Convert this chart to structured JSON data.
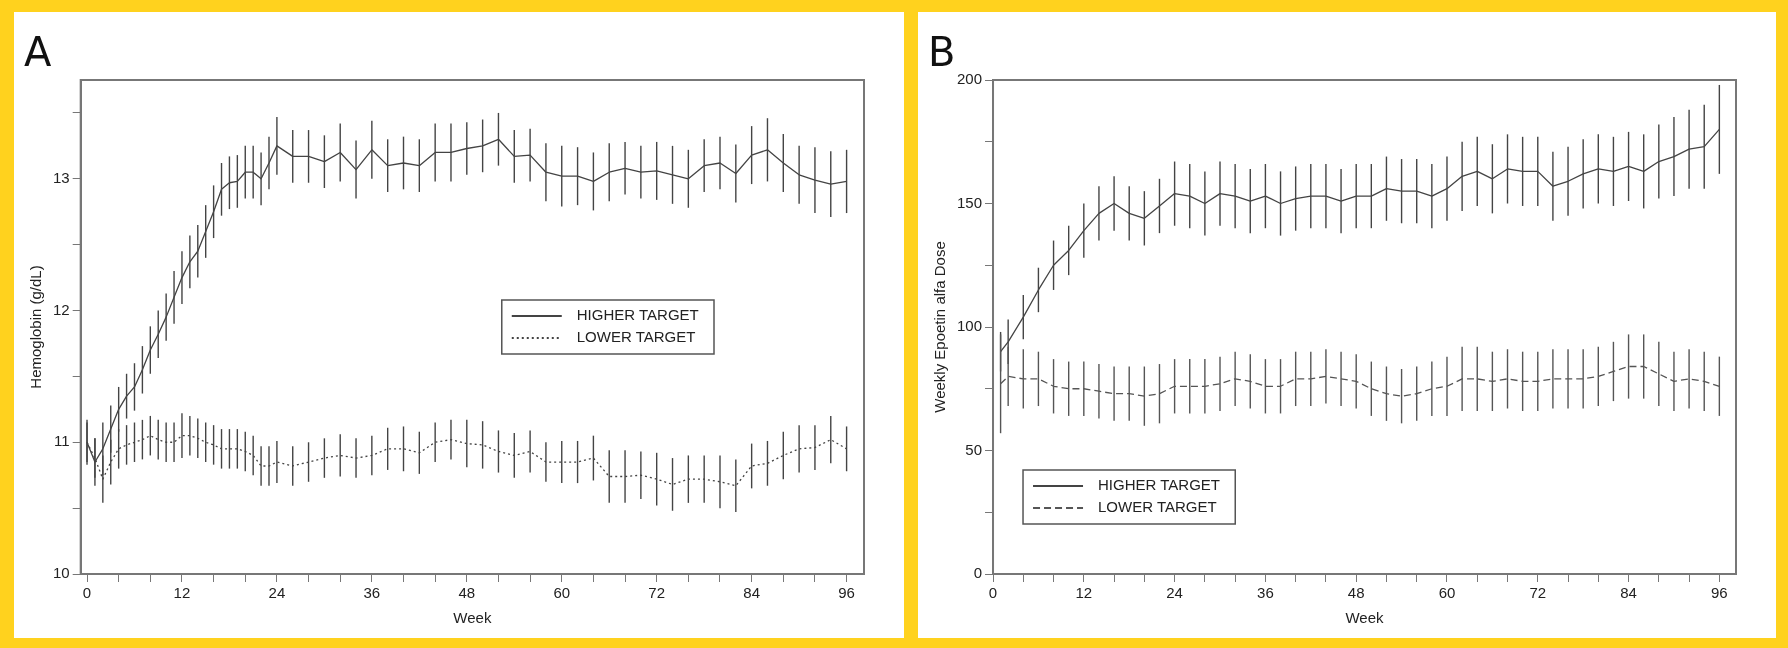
{
  "chart_data": [
    {
      "type": "line",
      "title": "A",
      "xlabel": "Week",
      "ylabel": "Hemoglobin (g/dL)",
      "xlim": [
        -0.8,
        98.2
      ],
      "ylim": [
        10,
        13.75
      ],
      "xticks": [
        0,
        {
          "value": 4,
          "label": null
        },
        {
          "value": 8,
          "label": null
        },
        12,
        {
          "value": 16,
          "label": null
        },
        {
          "value": 20,
          "label": null
        },
        24,
        {
          "value": 28,
          "label": null
        },
        {
          "value": 32,
          "label": null
        },
        36,
        {
          "value": 40,
          "label": null
        },
        {
          "value": 44,
          "label": null
        },
        48,
        {
          "value": 52,
          "label": null
        },
        {
          "value": 56,
          "label": null
        },
        60,
        {
          "value": 64,
          "label": null
        },
        {
          "value": 68,
          "label": null
        },
        72,
        {
          "value": 76,
          "label": null
        },
        {
          "value": 80,
          "label": null
        },
        84,
        {
          "value": 88,
          "label": null
        },
        {
          "value": 92,
          "label": null
        },
        96
      ],
      "yticks": [
        10,
        {
          "value": 10.5,
          "label": null
        },
        11,
        {
          "value": 11.5,
          "label": null
        },
        12,
        {
          "value": 12.5,
          "label": null
        },
        13,
        {
          "value": 13.5,
          "label": null
        }
      ],
      "grid": false,
      "legend": "right",
      "marker": "none",
      "x": [
        0,
        1,
        2,
        3,
        4,
        5,
        6,
        7,
        8,
        9,
        10,
        11,
        12,
        13,
        14,
        15,
        16,
        17,
        18,
        19,
        20,
        21,
        22,
        23,
        24,
        26,
        28,
        30,
        32,
        34,
        36,
        38,
        40,
        42,
        44,
        46,
        48,
        50,
        52,
        54,
        56,
        58,
        60,
        62,
        64,
        66,
        68,
        70,
        72,
        74,
        76,
        78,
        80,
        82,
        84,
        86,
        88,
        90,
        92,
        94,
        96
      ],
      "series": [
        {
          "name": "HIGHER TARGET",
          "color": "#444444",
          "line_style": "solid",
          "values": [
            11.0,
            10.85,
            10.95,
            11.1,
            11.25,
            11.35,
            11.42,
            11.55,
            11.7,
            11.82,
            11.95,
            12.1,
            12.25,
            12.37,
            12.45,
            12.6,
            12.75,
            12.92,
            12.97,
            12.98,
            13.05,
            13.05,
            13.0,
            13.12,
            13.25,
            13.17,
            13.17,
            13.13,
            13.2,
            13.07,
            13.22,
            13.1,
            13.12,
            13.1,
            13.2,
            13.2,
            13.23,
            13.25,
            13.3,
            13.17,
            13.18,
            13.05,
            13.02,
            13.02,
            12.98,
            13.05,
            13.08,
            13.05,
            13.06,
            13.03,
            13.0,
            13.1,
            13.12,
            13.04,
            13.18,
            13.22,
            13.12,
            13.03,
            12.99,
            12.96,
            12.98
          ],
          "errors": [
            0.17,
            0.18,
            0.2,
            0.18,
            0.17,
            0.17,
            0.18,
            0.18,
            0.18,
            0.18,
            0.18,
            0.2,
            0.2,
            0.2,
            0.2,
            0.2,
            0.2,
            0.2,
            0.2,
            0.2,
            0.2,
            0.2,
            0.2,
            0.2,
            0.22,
            0.2,
            0.2,
            0.2,
            0.22,
            0.22,
            0.22,
            0.2,
            0.2,
            0.2,
            0.22,
            0.22,
            0.2,
            0.2,
            0.2,
            0.2,
            0.2,
            0.22,
            0.23,
            0.22,
            0.22,
            0.22,
            0.2,
            0.2,
            0.22,
            0.22,
            0.22,
            0.2,
            0.2,
            0.22,
            0.22,
            0.24,
            0.22,
            0.22,
            0.25,
            0.25,
            0.24
          ]
        },
        {
          "name": "LOWER TARGET",
          "color": "#444444",
          "line_style": "dotted",
          "values": [
            11.0,
            10.88,
            10.72,
            10.85,
            10.95,
            10.98,
            11.0,
            11.02,
            11.05,
            11.02,
            11.0,
            11.0,
            11.05,
            11.05,
            11.03,
            11.0,
            10.98,
            10.95,
            10.95,
            10.95,
            10.93,
            10.9,
            10.82,
            10.82,
            10.85,
            10.82,
            10.85,
            10.88,
            10.9,
            10.88,
            10.9,
            10.95,
            10.95,
            10.92,
            11.0,
            11.02,
            10.99,
            10.98,
            10.93,
            10.9,
            10.93,
            10.85,
            10.85,
            10.85,
            10.88,
            10.74,
            10.74,
            10.75,
            10.72,
            10.68,
            10.72,
            10.72,
            10.7,
            10.67,
            10.82,
            10.84,
            10.9,
            10.95,
            10.96,
            11.02,
            10.95
          ],
          "errors": [
            0.15,
            0.15,
            0.18,
            0.17,
            0.15,
            0.15,
            0.15,
            0.15,
            0.15,
            0.15,
            0.15,
            0.15,
            0.17,
            0.15,
            0.15,
            0.15,
            0.15,
            0.15,
            0.15,
            0.15,
            0.15,
            0.15,
            0.15,
            0.15,
            0.16,
            0.15,
            0.15,
            0.15,
            0.16,
            0.15,
            0.15,
            0.16,
            0.17,
            0.16,
            0.15,
            0.15,
            0.18,
            0.18,
            0.16,
            0.17,
            0.16,
            0.15,
            0.16,
            0.16,
            0.17,
            0.2,
            0.2,
            0.18,
            0.2,
            0.2,
            0.18,
            0.18,
            0.2,
            0.2,
            0.17,
            0.17,
            0.18,
            0.18,
            0.17,
            0.18,
            0.17
          ]
        }
      ]
    },
    {
      "type": "line",
      "title": "B",
      "xlabel": "Week",
      "ylabel": "Weekly Epoetin alfa Dose",
      "xlim": [
        0,
        98.2
      ],
      "ylim": [
        0,
        200
      ],
      "xticks": [
        0,
        {
          "value": 4,
          "label": null
        },
        {
          "value": 8,
          "label": null
        },
        12,
        {
          "value": 16,
          "label": null
        },
        {
          "value": 20,
          "label": null
        },
        24,
        {
          "value": 28,
          "label": null
        },
        {
          "value": 32,
          "label": null
        },
        36,
        {
          "value": 40,
          "label": null
        },
        {
          "value": 44,
          "label": null
        },
        48,
        {
          "value": 52,
          "label": null
        },
        {
          "value": 56,
          "label": null
        },
        60,
        {
          "value": 64,
          "label": null
        },
        {
          "value": 68,
          "label": null
        },
        72,
        {
          "value": 76,
          "label": null
        },
        {
          "value": 80,
          "label": null
        },
        84,
        {
          "value": 88,
          "label": null
        },
        {
          "value": 92,
          "label": null
        },
        96
      ],
      "yticks": [
        0,
        {
          "value": 25,
          "label": null
        },
        50,
        {
          "value": 75,
          "label": null
        },
        100,
        {
          "value": 125,
          "label": null
        },
        150,
        {
          "value": 175,
          "label": null
        },
        200
      ],
      "grid": false,
      "legend": "bottom left",
      "marker": "none",
      "x": [
        1,
        2,
        4,
        6,
        8,
        10,
        12,
        14,
        16,
        18,
        20,
        22,
        24,
        26,
        28,
        30,
        32,
        34,
        36,
        38,
        40,
        42,
        44,
        46,
        48,
        50,
        52,
        54,
        56,
        58,
        60,
        62,
        64,
        66,
        68,
        70,
        72,
        74,
        76,
        78,
        80,
        82,
        84,
        86,
        88,
        90,
        92,
        94,
        96
      ],
      "series": [
        {
          "name": "HIGHER TARGET",
          "color": "#444444",
          "line_style": "solid",
          "values": [
            90,
            94,
            104,
            115,
            125,
            131,
            139,
            146,
            150,
            146,
            144,
            149,
            154,
            153,
            150,
            154,
            153,
            151,
            153,
            150,
            152,
            153,
            153,
            151,
            153,
            153,
            156,
            155,
            155,
            153,
            156,
            161,
            163,
            160,
            164,
            163,
            163,
            157,
            159,
            162,
            164,
            163,
            165,
            163,
            167,
            169,
            172,
            173,
            180
          ],
          "errors": [
            8,
            9,
            9,
            9,
            10,
            10,
            11,
            11,
            11,
            11,
            11,
            11,
            13,
            13,
            13,
            13,
            13,
            13,
            13,
            13,
            13,
            13,
            13,
            13,
            13,
            13,
            13,
            13,
            13,
            13,
            13,
            14,
            14,
            14,
            14,
            14,
            14,
            14,
            14,
            14,
            14,
            14,
            14,
            15,
            15,
            16,
            16,
            17,
            18
          ]
        },
        {
          "name": "LOWER TARGET",
          "color": "#555555",
          "line_style": "dashed",
          "values": [
            77,
            80,
            79,
            79,
            76,
            75,
            75,
            74,
            73,
            73,
            72,
            73,
            76,
            76,
            76,
            77,
            79,
            78,
            76,
            76,
            79,
            79,
            80,
            79,
            78,
            75,
            73,
            72,
            73,
            75,
            76,
            79,
            79,
            78,
            79,
            78,
            78,
            79,
            79,
            79,
            80,
            82,
            84,
            84,
            81,
            78,
            79,
            78,
            76
          ],
          "errors": [
            20,
            12,
            12,
            11,
            11,
            11,
            11,
            11,
            11,
            11,
            12,
            12,
            11,
            11,
            11,
            11,
            11,
            11,
            11,
            11,
            11,
            11,
            11,
            11,
            11,
            11,
            11,
            11,
            11,
            11,
            12,
            13,
            13,
            12,
            12,
            12,
            12,
            12,
            12,
            12,
            12,
            12,
            13,
            13,
            13,
            12,
            12,
            12,
            12
          ]
        }
      ]
    }
  ]
}
